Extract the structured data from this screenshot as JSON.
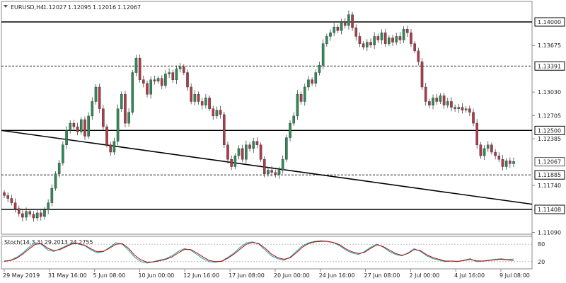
{
  "header": {
    "symbol": "EURUSD,H4",
    "open": "1.12027",
    "high": "1.12095",
    "low": "1.12016",
    "close": "1.12067"
  },
  "price_axis": {
    "ticks": [
      "1.13675",
      "1.13030",
      "1.12705",
      "1.12385",
      "1.11740",
      "1.11090"
    ],
    "levels": [
      {
        "label": "1.14000",
        "value": 1.14,
        "style": "solid"
      },
      {
        "label": "1.13391",
        "value": 1.13391,
        "style": "dashed"
      },
      {
        "label": "1.12500",
        "value": 1.125,
        "style": "solid"
      },
      {
        "label": "1.11885",
        "value": 1.11885,
        "style": "dashed"
      },
      {
        "label": "1.11408",
        "value": 1.11408,
        "style": "solid"
      }
    ],
    "current": {
      "label": "1.12067",
      "value": 1.12067
    }
  },
  "time_axis": {
    "labels": [
      "29 May 2019",
      "31 May 16:00",
      "5 Jun 08:00",
      "10 Jun 00:00",
      "12 Jun 16:00",
      "17 Jun 08:00",
      "20 Jun 00:00",
      "24 Jun 16:00",
      "27 Jun 08:00",
      "2 Jul 00:00",
      "4 Jul 16:00",
      "9 Jul 08:00"
    ]
  },
  "stoch": {
    "label": "Stoch(14,3,3) 29.2013 24.2755",
    "levels": [
      {
        "label": "80",
        "value": 80
      },
      {
        "label": "20",
        "value": 20
      }
    ]
  },
  "colors": {
    "bull": "#2e8b57",
    "bear": "#b03a48",
    "level_line": "#000000",
    "stoch_main": "#00aaaa",
    "stoch_signal": "#cc0000"
  },
  "chart_data": {
    "type": "candlestick",
    "trendline": [
      {
        "time": "29 May 2019",
        "price": 1.125
      },
      {
        "time": "9 Jul 08:00",
        "price": 1.1148
      }
    ],
    "closes": [
      1.116,
      1.1156,
      1.115,
      1.1142,
      1.1135,
      1.113,
      1.1138,
      1.1134,
      1.1129,
      1.1136,
      1.1131,
      1.114,
      1.115,
      1.117,
      1.119,
      1.1205,
      1.123,
      1.125,
      1.126,
      1.1255,
      1.1248,
      1.1265,
      1.1242,
      1.127,
      1.129,
      1.131,
      1.128,
      1.1255,
      1.123,
      1.122,
      1.1235,
      1.128,
      1.13,
      1.126,
      1.1275,
      1.133,
      1.135,
      1.132,
      1.1315,
      1.13,
      1.132,
      1.1318,
      1.1322,
      1.1312,
      1.1328,
      1.133,
      1.132,
      1.1335,
      1.1338,
      1.133,
      1.131,
      1.129,
      1.13,
      1.129,
      1.1285,
      1.1295,
      1.128,
      1.127,
      1.1278,
      1.1272,
      1.123,
      1.121,
      1.12,
      1.1215,
      1.1225,
      1.121,
      1.123,
      1.1225,
      1.1235,
      1.123,
      1.121,
      1.119,
      1.1195,
      1.1192,
      1.1189,
      1.1195,
      1.121,
      1.124,
      1.126,
      1.127,
      1.13,
      1.129,
      1.131,
      1.132,
      1.1315,
      1.133,
      1.134,
      1.137,
      1.138,
      1.1385,
      1.1393,
      1.1388,
      1.14,
      1.1395,
      1.141,
      1.1392,
      1.138,
      1.137,
      1.1365,
      1.1372,
      1.1368,
      1.138,
      1.1375,
      1.1385,
      1.137,
      1.1378,
      1.1372,
      1.138,
      1.1375,
      1.139,
      1.1385,
      1.137,
      1.136,
      1.1345,
      1.131,
      1.129,
      1.1285,
      1.1295,
      1.129,
      1.1298,
      1.1285,
      1.129,
      1.1282,
      1.128,
      1.1282,
      1.1278,
      1.128,
      1.1275,
      1.126,
      1.123,
      1.1215,
      1.1225,
      1.123,
      1.122,
      1.1215,
      1.121,
      1.12,
      1.1208,
      1.1204,
      1.1207
    ],
    "stoch_k": [
      20,
      25,
      35,
      50,
      70,
      85,
      80,
      60,
      55,
      65,
      75,
      85,
      80,
      75,
      60,
      50,
      55,
      70,
      85,
      80,
      60,
      35,
      20,
      15,
      20,
      25,
      30,
      40,
      55,
      65,
      60,
      45,
      30,
      20,
      18,
      22,
      35,
      50,
      70,
      85,
      88,
      80,
      60,
      40,
      30,
      25,
      35,
      55,
      75,
      85,
      90,
      92,
      90,
      85,
      75,
      60,
      50,
      45,
      55,
      70,
      80,
      70,
      55,
      45,
      40,
      50,
      65,
      55,
      40,
      30,
      25,
      20,
      22,
      20,
      25,
      30,
      20,
      22,
      25,
      28,
      30,
      27,
      29
    ],
    "stoch_d": [
      22,
      24,
      32,
      46,
      64,
      80,
      82,
      66,
      58,
      62,
      72,
      82,
      82,
      76,
      64,
      54,
      56,
      67,
      80,
      82,
      66,
      42,
      26,
      18,
      19,
      23,
      28,
      36,
      50,
      62,
      62,
      50,
      36,
      24,
      20,
      21,
      32,
      46,
      64,
      80,
      86,
      82,
      66,
      46,
      34,
      28,
      33,
      50,
      70,
      82,
      88,
      90,
      90,
      86,
      78,
      64,
      54,
      48,
      52,
      66,
      78,
      72,
      60,
      48,
      42,
      48,
      62,
      58,
      44,
      34,
      28,
      22,
      22,
      21,
      24,
      28,
      23,
      22,
      24,
      26,
      28,
      26,
      24
    ]
  }
}
